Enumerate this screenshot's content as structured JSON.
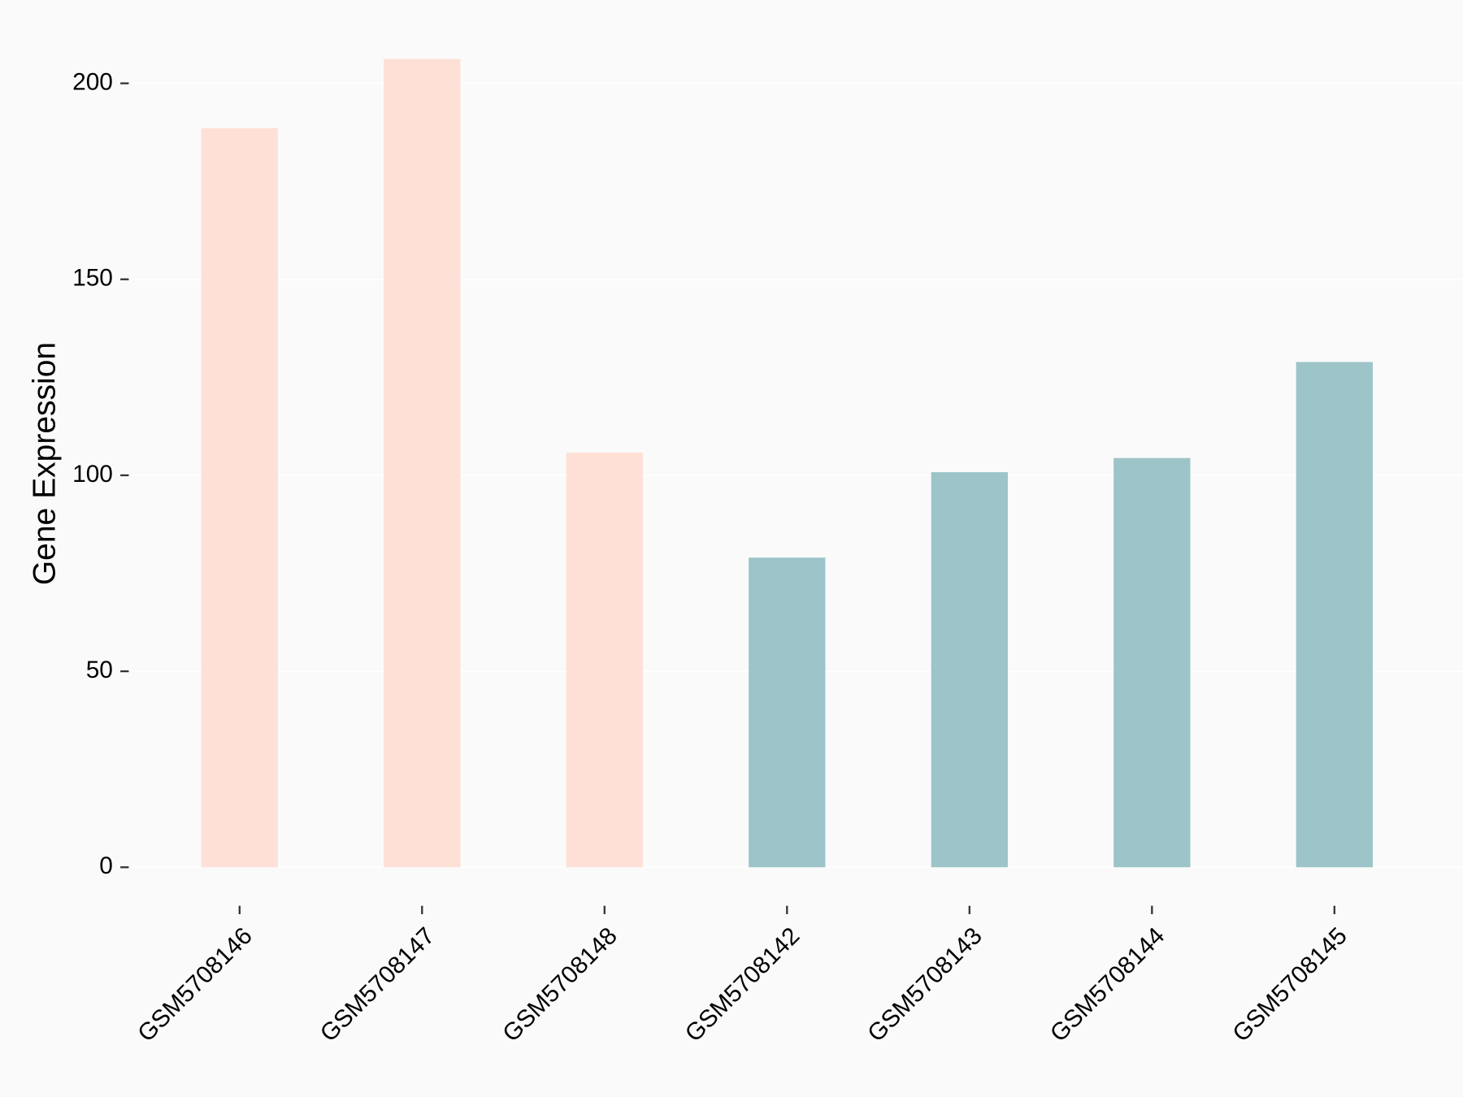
{
  "chart_data": {
    "type": "bar",
    "y_label": "Gene Expression",
    "categories": [
      "GSM5708146",
      "GSM5708147",
      "GSM5708148",
      "GSM5708142",
      "GSM5708143",
      "GSM5708144",
      "GSM5708145"
    ],
    "values": [
      188.6,
      206.2,
      105.8,
      79,
      100.8,
      104.4,
      128.9
    ],
    "colors": [
      "#ffe0d6",
      "#ffe0d6",
      "#ffe0d6",
      "#9dc4c8",
      "#9dc4c8",
      "#9dc4c8",
      "#9dc4c8"
    ],
    "ylim": [
      -10.3,
      216.5
    ],
    "yticks": [
      0,
      50,
      100,
      150,
      200
    ],
    "grid": true
  }
}
